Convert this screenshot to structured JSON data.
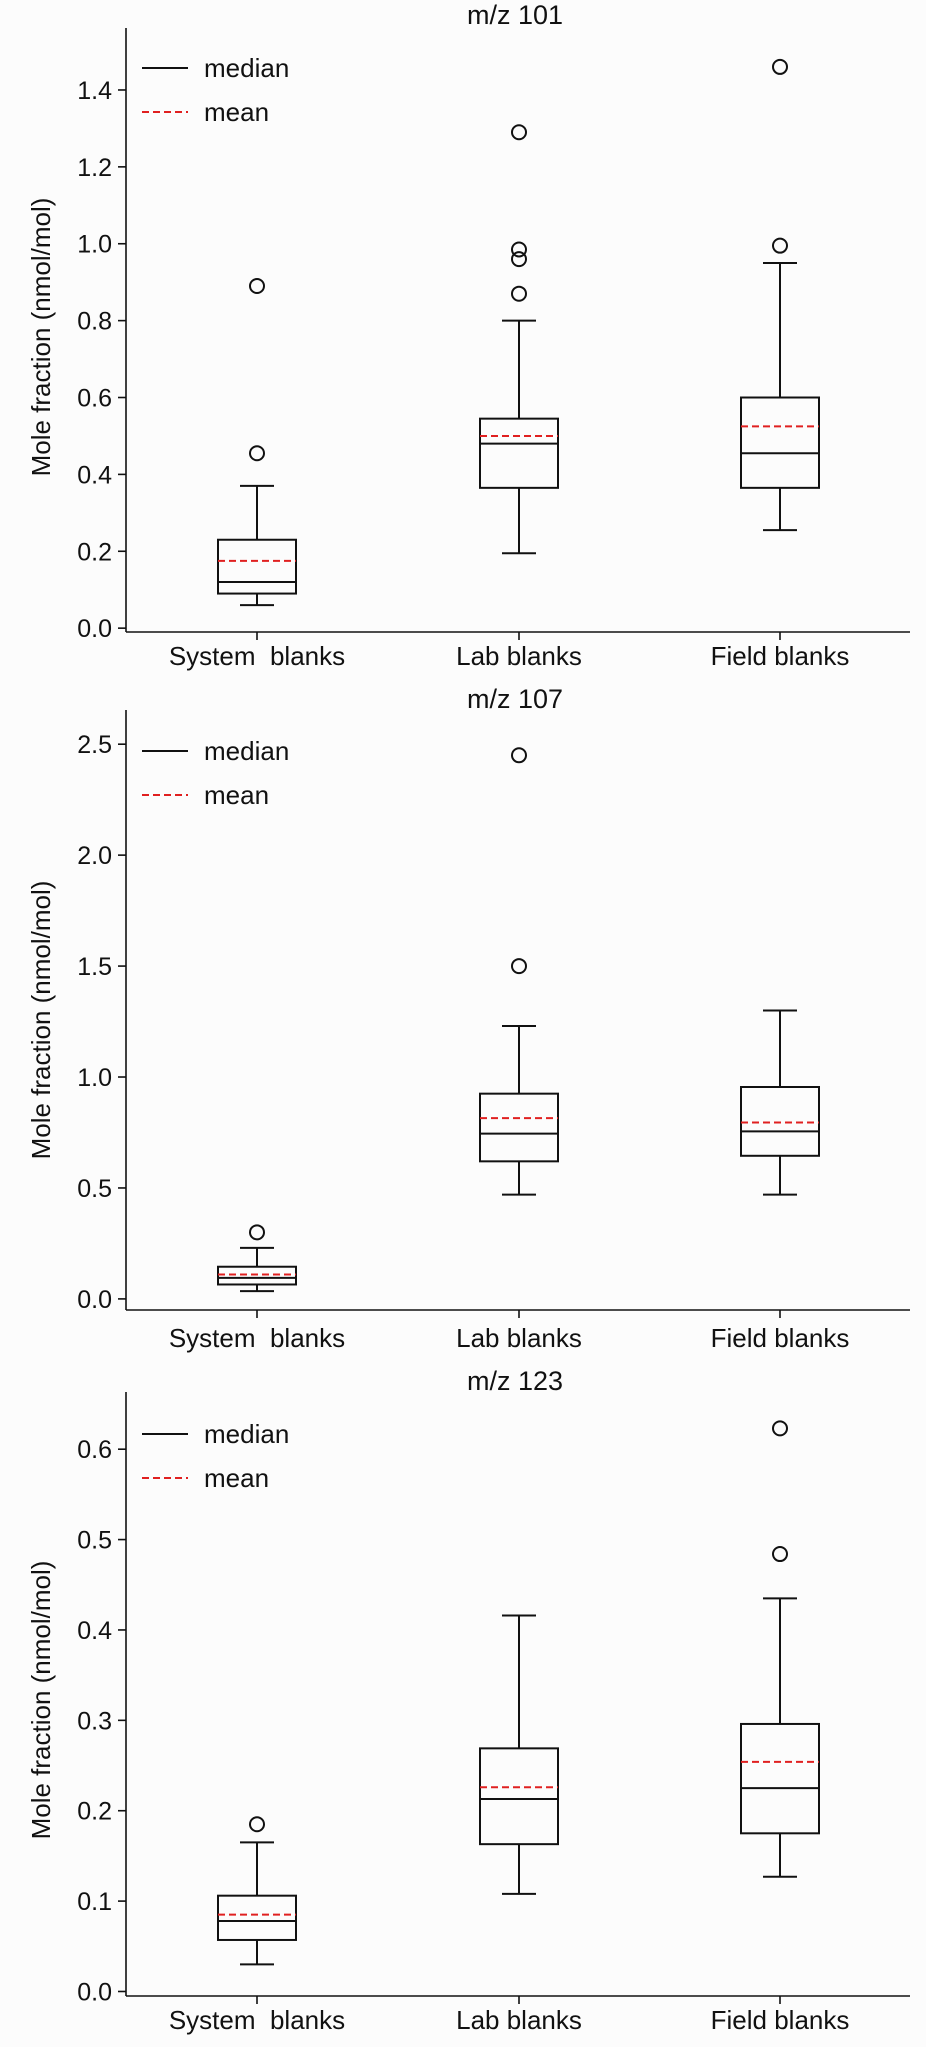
{
  "chart_data": [
    {
      "type": "box",
      "title": "m/z 101",
      "ylabel": "Mole fraction (nmol/mol)",
      "xlabel": "",
      "ylim": [
        -0.01,
        1.53
      ],
      "yticks": [
        "0.0",
        "0.2",
        "0.4",
        "0.6",
        "0.8",
        "1.0",
        "1.2",
        "1.4"
      ],
      "yticks_values": [
        0,
        0.2,
        0.4,
        0.6,
        0.8,
        1.0,
        1.2,
        1.4
      ],
      "categories": [
        "System  blanks",
        "Lab blanks",
        "Field blanks"
      ],
      "legend": {
        "position": "top-left",
        "median_label": "median",
        "mean_label": "mean"
      },
      "boxes": [
        {
          "whisker_low": 0.06,
          "q1": 0.09,
          "median": 0.12,
          "mean": 0.175,
          "q3": 0.23,
          "whisker_high": 0.37,
          "outliers": [
            0.455,
            0.89
          ]
        },
        {
          "whisker_low": 0.195,
          "q1": 0.365,
          "median": 0.48,
          "mean": 0.5,
          "q3": 0.545,
          "whisker_high": 0.8,
          "outliers": [
            0.87,
            0.96,
            0.985,
            1.29
          ]
        },
        {
          "whisker_low": 0.255,
          "q1": 0.365,
          "median": 0.455,
          "mean": 0.525,
          "q3": 0.6,
          "whisker_high": 0.95,
          "outliers": [
            0.995,
            1.46
          ]
        }
      ]
    },
    {
      "type": "box",
      "title": "m/z 107",
      "ylabel": "Mole fraction (nmol/mol)",
      "xlabel": "",
      "ylim": [
        -0.05,
        2.6
      ],
      "yticks": [
        "0.0",
        "0.5",
        "1.0",
        "1.5",
        "2.0",
        "2.5"
      ],
      "yticks_values": [
        0,
        0.5,
        1.0,
        1.5,
        2.0,
        2.5
      ],
      "categories": [
        "System  blanks",
        "Lab blanks",
        "Field blanks"
      ],
      "legend": {
        "position": "top-left",
        "median_label": "median",
        "mean_label": "mean"
      },
      "boxes": [
        {
          "whisker_low": 0.035,
          "q1": 0.065,
          "median": 0.095,
          "mean": 0.11,
          "q3": 0.145,
          "whisker_high": 0.23,
          "outliers": [
            0.3
          ]
        },
        {
          "whisker_low": 0.47,
          "q1": 0.62,
          "median": 0.745,
          "mean": 0.815,
          "q3": 0.925,
          "whisker_high": 1.23,
          "outliers": [
            1.5,
            2.45
          ]
        },
        {
          "whisker_low": 0.47,
          "q1": 0.645,
          "median": 0.755,
          "mean": 0.795,
          "q3": 0.955,
          "whisker_high": 1.3,
          "outliers": []
        }
      ]
    },
    {
      "type": "box",
      "title": "m/z 123",
      "ylabel": "Mole fraction (nmol/mol)",
      "xlabel": "",
      "ylim": [
        -0.005,
        0.65
      ],
      "yticks": [
        "0.0",
        "0.1",
        "0.2",
        "0.3",
        "0.4",
        "0.5",
        "0.6"
      ],
      "yticks_values": [
        0,
        0.1,
        0.2,
        0.3,
        0.4,
        0.5,
        0.6
      ],
      "categories": [
        "System  blanks",
        "Lab blanks",
        "Field blanks"
      ],
      "legend": {
        "position": "top-left",
        "median_label": "median",
        "mean_label": "mean"
      },
      "boxes": [
        {
          "whisker_low": 0.03,
          "q1": 0.057,
          "median": 0.078,
          "mean": 0.085,
          "q3": 0.106,
          "whisker_high": 0.165,
          "outliers": [
            0.185
          ]
        },
        {
          "whisker_low": 0.108,
          "q1": 0.163,
          "median": 0.213,
          "mean": 0.226,
          "q3": 0.269,
          "whisker_high": 0.416,
          "outliers": []
        },
        {
          "whisker_low": 0.127,
          "q1": 0.175,
          "median": 0.225,
          "mean": 0.254,
          "q3": 0.296,
          "whisker_high": 0.435,
          "outliers": [
            0.484,
            0.623
          ]
        }
      ]
    }
  ]
}
